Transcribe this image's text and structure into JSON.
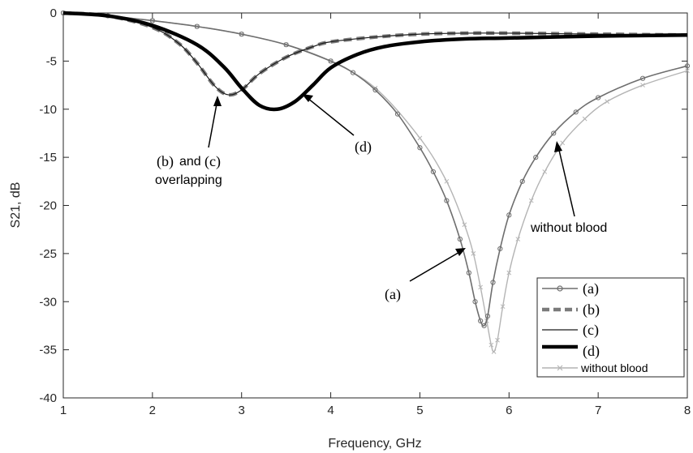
{
  "chart_data": {
    "type": "line",
    "title": "",
    "xlabel": "Frequency, GHz",
    "ylabel": "S21, dB",
    "xlim": [
      1,
      8
    ],
    "ylim": [
      -40,
      0
    ],
    "xticks": [
      1,
      2,
      3,
      4,
      5,
      6,
      7,
      8
    ],
    "yticks": [
      0,
      -5,
      -10,
      -15,
      -20,
      -25,
      -30,
      -35,
      -40
    ],
    "grid": false,
    "legend_position": "bottom-right",
    "series": [
      {
        "name": "(a)",
        "color": "#6e6e6e",
        "marker": "circle",
        "x": [
          1.0,
          1.5,
          2.0,
          2.5,
          3.0,
          3.5,
          4.0,
          4.25,
          4.5,
          4.75,
          5.0,
          5.15,
          5.3,
          5.45,
          5.55,
          5.62,
          5.68,
          5.72,
          5.76,
          5.82,
          5.9,
          6.0,
          6.15,
          6.3,
          6.5,
          6.75,
          7.0,
          7.5,
          8.0
        ],
        "y": [
          0.0,
          -0.3,
          -0.8,
          -1.4,
          -2.2,
          -3.3,
          -5.0,
          -6.2,
          -8.0,
          -10.5,
          -14.0,
          -16.5,
          -19.5,
          -23.5,
          -27.0,
          -30.0,
          -32.0,
          -32.5,
          -31.5,
          -28.0,
          -24.5,
          -21.0,
          -17.5,
          -15.0,
          -12.5,
          -10.3,
          -8.8,
          -6.8,
          -5.5
        ]
      },
      {
        "name": "(b)",
        "color": "#7a7a7a",
        "style": "dashed",
        "x": [
          1.0,
          1.5,
          2.0,
          2.3,
          2.5,
          2.7,
          2.85,
          3.0,
          3.2,
          3.5,
          3.8,
          4.0,
          4.5,
          5.0,
          5.5,
          6.0,
          7.0,
          8.0
        ],
        "y": [
          0.0,
          -0.3,
          -1.5,
          -3.2,
          -5.2,
          -7.6,
          -8.5,
          -8.0,
          -6.3,
          -4.6,
          -3.5,
          -3.0,
          -2.5,
          -2.2,
          -2.1,
          -2.1,
          -2.2,
          -2.3
        ]
      },
      {
        "name": "(c)",
        "color": "#1a1a1a",
        "style": "thin",
        "x": [
          1.0,
          1.5,
          2.0,
          2.3,
          2.5,
          2.7,
          2.85,
          3.0,
          3.2,
          3.5,
          3.8,
          4.0,
          4.5,
          5.0,
          5.5,
          6.0,
          7.0,
          8.0
        ],
        "y": [
          0.0,
          -0.3,
          -1.5,
          -3.2,
          -5.2,
          -7.6,
          -8.5,
          -8.0,
          -6.3,
          -4.6,
          -3.5,
          -3.0,
          -2.5,
          -2.2,
          -2.1,
          -2.1,
          -2.2,
          -2.3
        ]
      },
      {
        "name": "(d)",
        "color": "#000000",
        "style": "thick",
        "x": [
          1.0,
          1.5,
          2.0,
          2.5,
          2.8,
          3.0,
          3.2,
          3.4,
          3.6,
          3.8,
          4.0,
          4.3,
          4.6,
          5.0,
          5.5,
          6.0,
          7.0,
          8.0
        ],
        "y": [
          0.0,
          -0.3,
          -1.3,
          -3.3,
          -5.6,
          -7.8,
          -9.6,
          -10.0,
          -9.2,
          -7.5,
          -5.7,
          -4.3,
          -3.5,
          -3.0,
          -2.7,
          -2.6,
          -2.4,
          -2.3
        ]
      },
      {
        "name": "without blood",
        "color": "#b4b4b4",
        "marker": "x",
        "x": [
          1.0,
          1.5,
          2.0,
          2.5,
          3.0,
          3.5,
          4.0,
          4.5,
          5.0,
          5.3,
          5.5,
          5.6,
          5.68,
          5.75,
          5.8,
          5.83,
          5.87,
          5.93,
          6.0,
          6.1,
          6.25,
          6.4,
          6.6,
          6.85,
          7.1,
          7.5,
          8.0
        ],
        "y": [
          0.0,
          -0.3,
          -0.8,
          -1.4,
          -2.2,
          -3.3,
          -5.0,
          -7.8,
          -13.0,
          -17.5,
          -22.0,
          -25.0,
          -28.5,
          -32.0,
          -34.5,
          -35.2,
          -34.0,
          -30.5,
          -27.0,
          -23.5,
          -19.5,
          -16.5,
          -13.5,
          -11.0,
          -9.2,
          -7.5,
          -6.0
        ]
      }
    ],
    "annotations": [
      {
        "id": "ann_bc",
        "text_line1": "(b)",
        "text_line1b": "and",
        "text_line1c": "(c)",
        "text_line2": "overlapping"
      },
      {
        "id": "ann_d",
        "text": "(d)"
      },
      {
        "id": "ann_a",
        "text": "(a)"
      },
      {
        "id": "ann_wb",
        "text": "without blood"
      }
    ],
    "legend": {
      "a": "(a)",
      "b": "(b)",
      "c": "(c)",
      "d": "(d)",
      "wb": "without blood"
    }
  }
}
